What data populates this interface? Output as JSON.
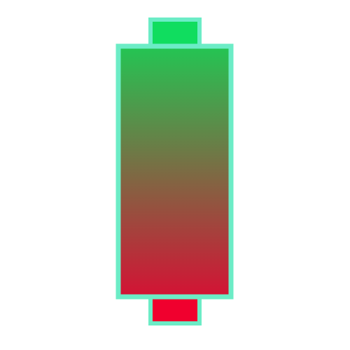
{
  "colors": {
    "background": "#ffffff",
    "outline": "#6cecc6",
    "top_cap": "#10dd5f",
    "bottom_cap": "#f0002e",
    "body_gradient_top": "#23c553",
    "body_gradient_bottom": "#d41234"
  },
  "icon": {
    "name": "battery-gradient-icon"
  }
}
